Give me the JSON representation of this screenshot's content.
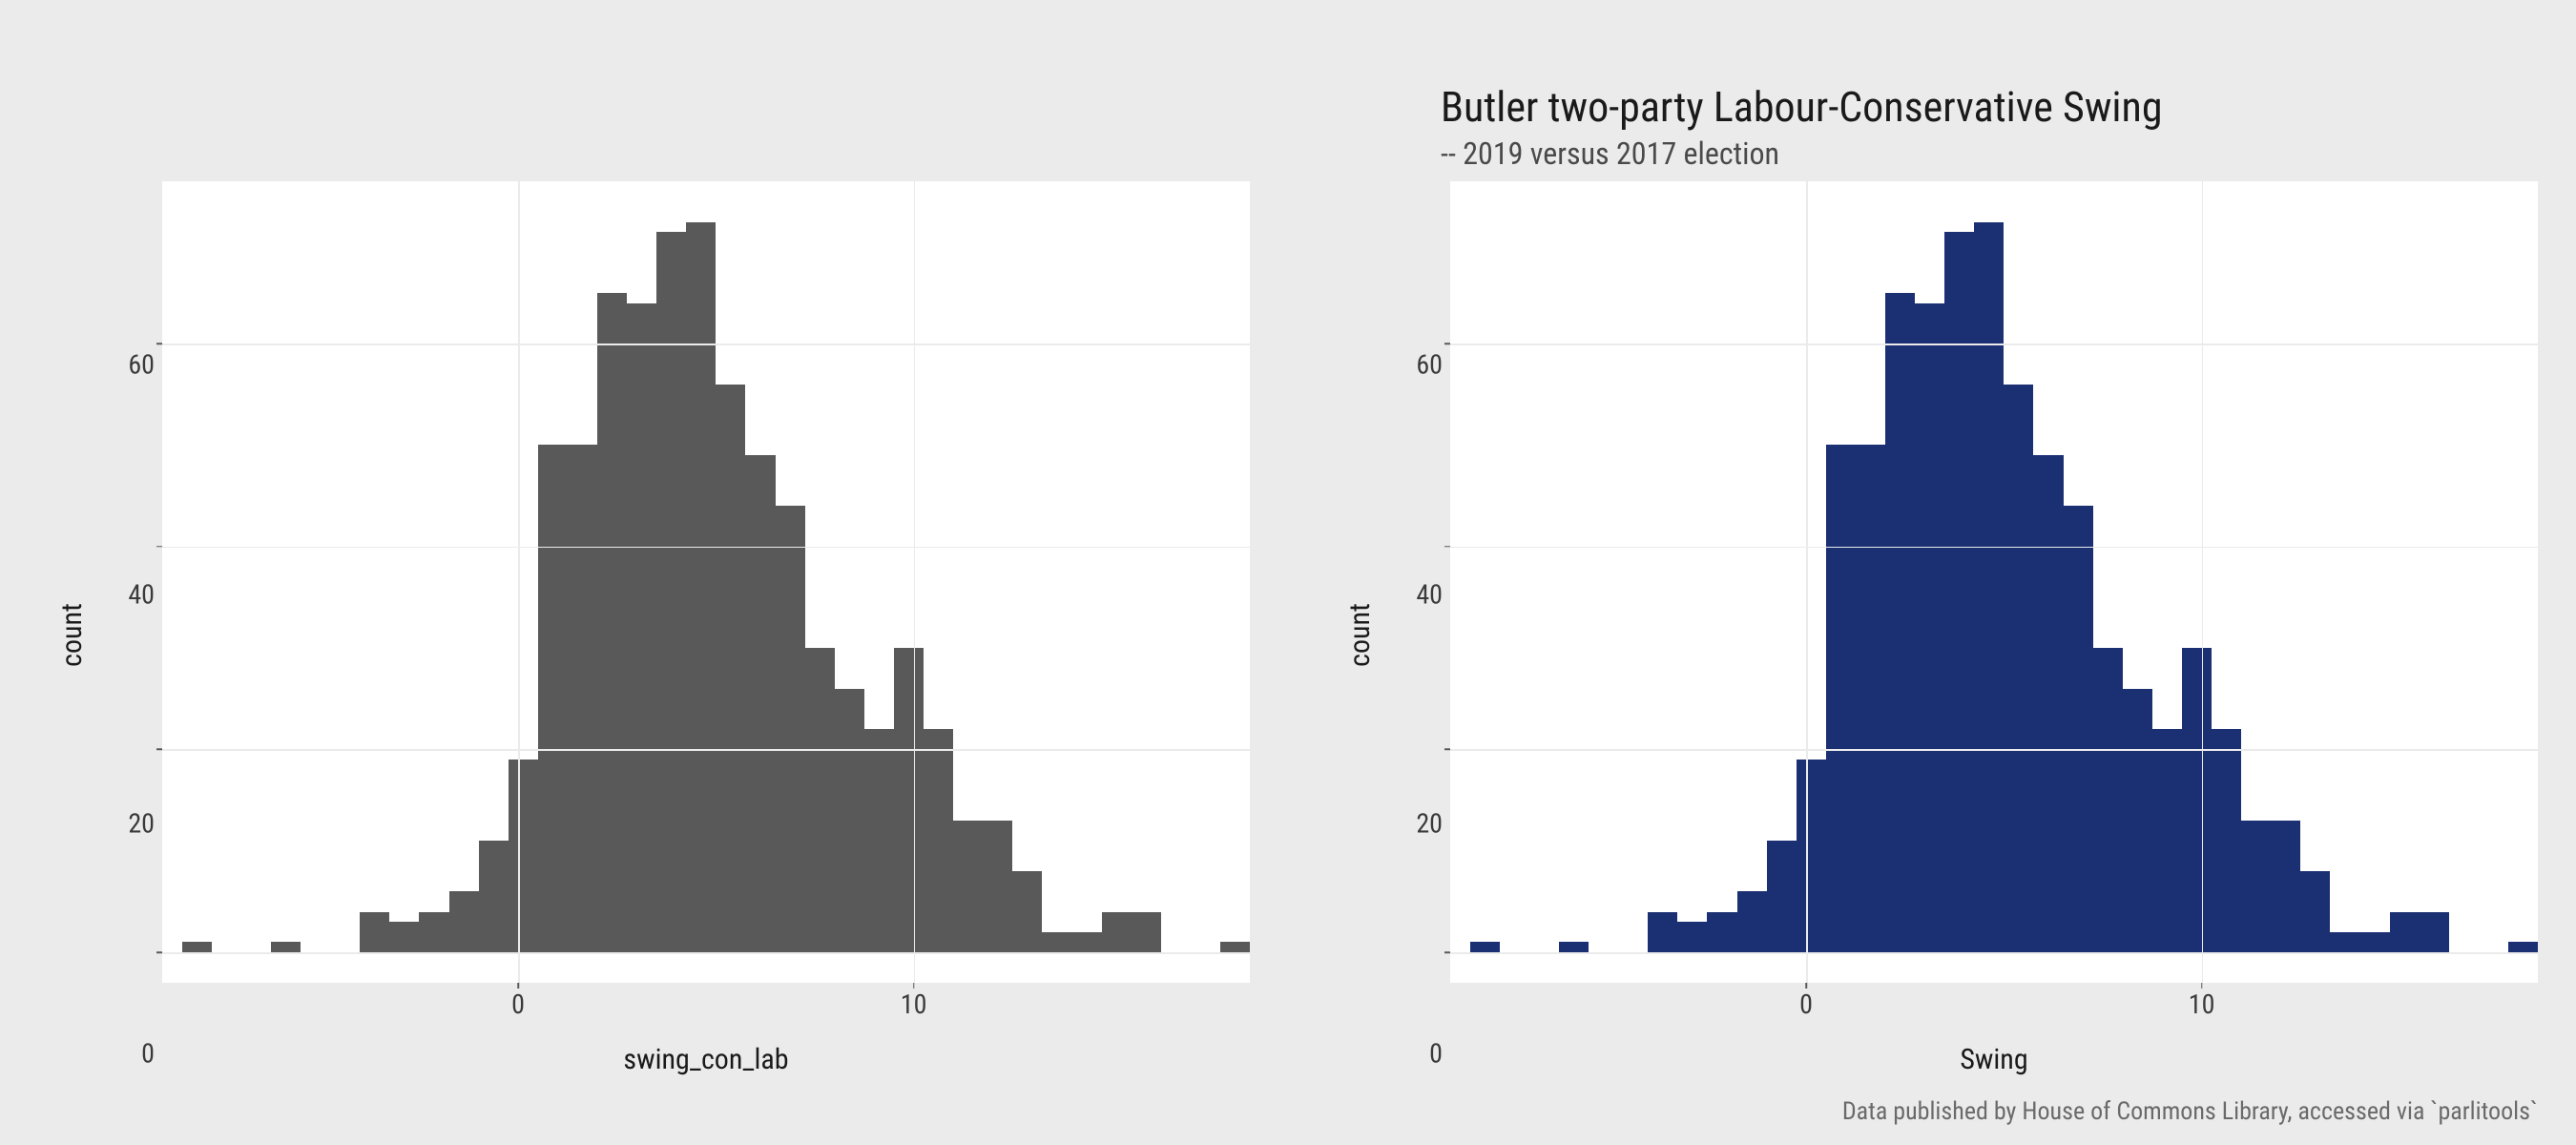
{
  "figure": {
    "background_color": "#ebebeb",
    "panel_background_color": "#ffffff",
    "grid_color": "#ebebeb",
    "tick_fontsize": 28,
    "label_fontsize": 30,
    "title_fontsize": 44,
    "subtitle_fontsize": 32,
    "caption_fontsize": 26,
    "text_color": "#1a1a1a",
    "subtext_color": "#4a4a4a",
    "caption_color": "#6a6a6a"
  },
  "histogram_shared": {
    "type": "histogram",
    "xlim": [
      -9,
      18.5
    ],
    "ylim": [
      -3,
      76
    ],
    "xticks": [
      0,
      10
    ],
    "yticks": [
      0,
      20,
      40,
      60
    ],
    "ylabel": "count",
    "bin_width": 0.75,
    "bin_edges_start": -8.5,
    "bin_count": 36,
    "counts": [
      1,
      0,
      0,
      1,
      0,
      0,
      4,
      3,
      4,
      6,
      11,
      19,
      50,
      50,
      65,
      64,
      71,
      72,
      56,
      49,
      44,
      30,
      26,
      22,
      30,
      22,
      13,
      13,
      8,
      2,
      2,
      4,
      4,
      0,
      0,
      1
    ]
  },
  "left_chart": {
    "title": "",
    "subtitle": "",
    "xlabel": "swing_con_lab",
    "bar_color": "#595959",
    "caption": ""
  },
  "right_chart": {
    "title": "Butler two-party Labour-Conservative Swing",
    "subtitle": "-- 2019 versus 2017 election",
    "xlabel": "Swing",
    "bar_color": "#1b2f73",
    "caption": "Data published by House of Commons Library, accessed via `parlitools`"
  }
}
